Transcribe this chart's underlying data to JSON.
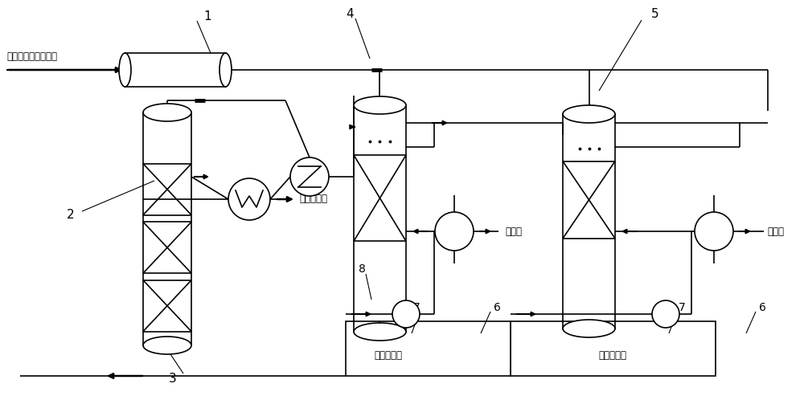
{
  "bg_color": "#ffffff",
  "line_color": "#000000",
  "text_inlet": "燃烧系统来的过程气",
  "text_absorption": "去吸收系统",
  "text_desulfurization": "去硫铵单元",
  "text_supplement": "补充液硫酸",
  "text_cooling_water_1": "冷却水",
  "text_cooling_water_2": "冷却水",
  "figsize": [
    10.0,
    4.93
  ],
  "dpi": 100,
  "xlim": [
    0,
    10
  ],
  "ylim": [
    0,
    4.93
  ]
}
